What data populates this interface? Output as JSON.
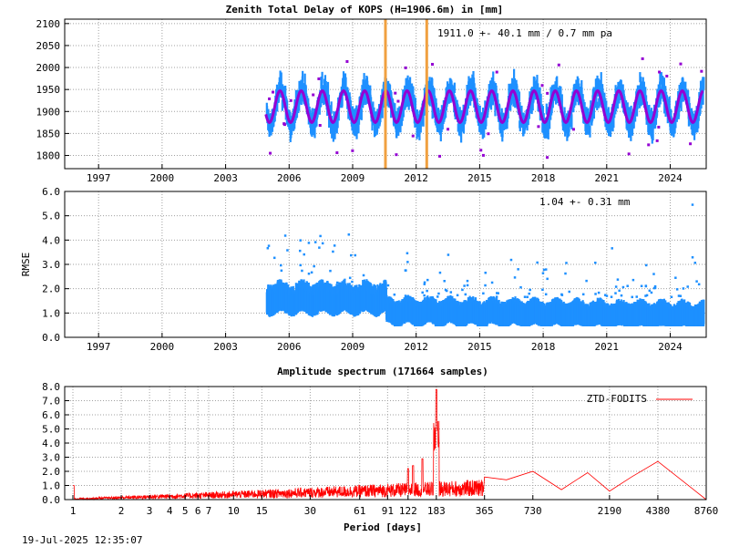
{
  "footer": {
    "timestamp": "19-Jul-2025 12:35:07"
  },
  "colors": {
    "data": "#1e90ff",
    "model": "#9400d3",
    "outlier": "#9400d3",
    "events": "#f0a040",
    "spectrum": "#ff0000",
    "grid": "#a0a0a0"
  },
  "chart_data": [
    {
      "type": "scatter",
      "title": "Zenith Total Delay of KOPS (H=1906.6m) in [mm]",
      "xlabel": "",
      "ylabel": "",
      "annotation": "1911.0 +-  40.1 mm /  0.7 mm pa",
      "xlim": [
        1995.4,
        2025.7
      ],
      "ylim": [
        1770,
        2110
      ],
      "x_ticks": [
        "1997",
        "2000",
        "2003",
        "2006",
        "2009",
        "2012",
        "2015",
        "2018",
        "2021",
        "2024"
      ],
      "y_ticks": [
        "1800",
        "1850",
        "1900",
        "1950",
        "2000",
        "2050",
        "2100"
      ],
      "grid": true,
      "series": [
        {
          "role": "daily ZTD",
          "start": 2004.9,
          "end": 2025.55,
          "mean": 1911.0,
          "amplitude": 40.1,
          "trend_per_year": 0.7
        },
        {
          "role": "seasonal model",
          "mean": 1911.0,
          "amplitude": 36
        }
      ],
      "event_lines": [
        2010.55,
        2012.5
      ]
    },
    {
      "type": "scatter",
      "title": "",
      "xlabel": "",
      "ylabel": "RMSE",
      "annotation": "1.04 +-  0.31 mm",
      "xlim": [
        1995.4,
        2025.7
      ],
      "ylim": [
        0,
        6
      ],
      "x_ticks": [
        "1997",
        "2000",
        "2003",
        "2006",
        "2009",
        "2012",
        "2015",
        "2018",
        "2021",
        "2024"
      ],
      "y_ticks": [
        "0.0",
        "1.0",
        "2.0",
        "3.0",
        "4.0",
        "5.0",
        "6.0"
      ],
      "grid": true,
      "series": [
        {
          "role": "RMSE",
          "start": 2004.9,
          "end": 2025.55,
          "mean_before": 1.45,
          "mean_after": 1.0,
          "break": 2010.55
        }
      ]
    },
    {
      "type": "line",
      "title": "Amplitude spectrum (171664 samples)",
      "xlabel": "Period [days]",
      "ylabel": "",
      "xscale": "log",
      "xlim": [
        1,
        8760
      ],
      "ylim": [
        0,
        8
      ],
      "x_ticks": [
        "1",
        "2",
        "3",
        "4",
        "5",
        "6",
        "7",
        "10",
        "15",
        "30",
        "61",
        "91",
        "122",
        "183",
        "365",
        "730",
        "2190",
        "4380",
        "8760"
      ],
      "y_ticks": [
        "0.0",
        "1.0",
        "2.0",
        "3.0",
        "4.0",
        "5.0",
        "6.0",
        "7.0",
        "8.0"
      ],
      "grid": true,
      "legend": "top-right",
      "series": [
        {
          "name": "ZTD-FODITS",
          "peaks": [
            [
              365,
              1.6
            ],
            [
              500,
              1.4
            ],
            [
              730,
              2.0
            ],
            [
              1100,
              0.7
            ],
            [
              1600,
              1.9
            ],
            [
              2190,
              0.6
            ],
            [
              3000,
              1.6
            ],
            [
              4380,
              2.7
            ],
            [
              8760,
              0.0
            ]
          ],
          "annual_peak": [
            183,
            7.8
          ]
        }
      ]
    }
  ]
}
